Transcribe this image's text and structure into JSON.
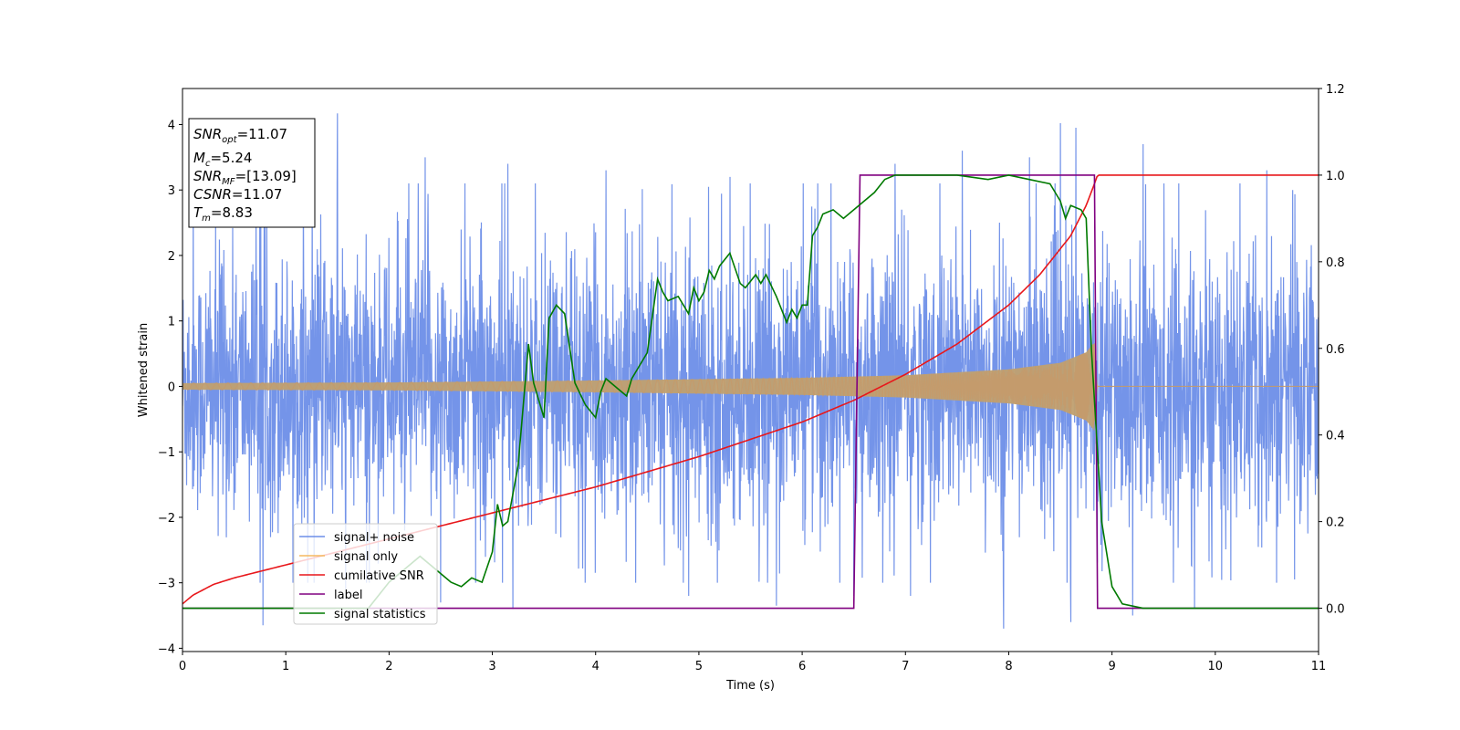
{
  "chart_data": {
    "type": "line",
    "title": "",
    "xlabel": "Time (s)",
    "ylabel": "Whitened strain",
    "xlim": [
      0,
      11
    ],
    "ylim_left": [
      -4.05,
      4.55
    ],
    "ylim_right": [
      -0.1,
      1.2
    ],
    "xticks": [
      "0",
      "1",
      "2",
      "3",
      "4",
      "5",
      "6",
      "7",
      "8",
      "9",
      "10",
      "11"
    ],
    "yticks_left": [
      "−4",
      "−3",
      "−2",
      "−1",
      "0",
      "1",
      "2",
      "3",
      "4"
    ],
    "yticks_right": [
      "0.0",
      "0.2",
      "0.4",
      "0.6",
      "0.8",
      "1.0",
      "1.2"
    ],
    "grid": false,
    "legend_position": "lower-left",
    "annotation": [
      {
        "sym": "SNR",
        "sub": "opt",
        "val": "=11.07"
      },
      {
        "sym": "M",
        "sub": "c",
        "val": "=5.24"
      },
      {
        "sym": "SNR",
        "sub": "MF",
        "val": "=[13.09]"
      },
      {
        "sym": "CSNR",
        "sub": "",
        "val": "=11.07"
      },
      {
        "sym": "T",
        "sub": "m",
        "val": "=8.83"
      }
    ],
    "series": [
      {
        "name": "signal+ noise",
        "axis": "left",
        "color": "#6d8ee8",
        "description_values": {
          "typical_amplitude": 1.3,
          "min": -3.7,
          "max": 4.17
        },
        "spikes": [
          [
            0.75,
            2.9
          ],
          [
            0.78,
            -3.65
          ],
          [
            1.5,
            4.17
          ],
          [
            1.58,
            -3.1
          ],
          [
            2.35,
            3.5
          ],
          [
            2.5,
            -3.3
          ],
          [
            3.15,
            3.4
          ],
          [
            3.2,
            -3.4
          ],
          [
            4.1,
            3.3
          ],
          [
            4.9,
            -3.2
          ],
          [
            5.3,
            3.2
          ],
          [
            5.75,
            -3.35
          ],
          [
            6.15,
            3.1
          ],
          [
            6.5,
            -3.2
          ],
          [
            6.9,
            3.4
          ],
          [
            7.05,
            -3.2
          ],
          [
            7.55,
            3.6
          ],
          [
            7.95,
            -3.7
          ],
          [
            8.2,
            3.5
          ],
          [
            8.5,
            4.02
          ],
          [
            8.6,
            -3.6
          ],
          [
            8.65,
            3.95
          ],
          [
            9.2,
            -3.5
          ],
          [
            9.3,
            3.7
          ],
          [
            9.8,
            -3.4
          ],
          [
            10.5,
            3.3
          ],
          [
            10.75,
            3.0
          ]
        ]
      },
      {
        "name": "signal only",
        "axis": "left",
        "color": "#f5b861",
        "envelope": {
          "x": [
            0,
            2,
            4,
            6,
            7,
            8,
            8.5,
            8.75,
            8.83,
            8.86,
            11
          ],
          "amp": [
            0.05,
            0.06,
            0.09,
            0.13,
            0.17,
            0.26,
            0.36,
            0.52,
            0.68,
            0,
            0
          ]
        }
      },
      {
        "name": "cumilative SNR",
        "axis": "right",
        "color": "#e8171b",
        "x": [
          0,
          0.1,
          0.3,
          0.5,
          1,
          2,
          3,
          4,
          5,
          6,
          6.5,
          7,
          7.5,
          8,
          8.3,
          8.6,
          8.75,
          8.83,
          8.86,
          11
        ],
        "values": [
          0.01,
          0.03,
          0.055,
          0.07,
          0.1,
          0.16,
          0.22,
          0.28,
          0.35,
          0.43,
          0.48,
          0.54,
          0.61,
          0.7,
          0.77,
          0.86,
          0.93,
          0.98,
          1.0,
          1.0
        ]
      },
      {
        "name": "label",
        "axis": "right",
        "color": "#800080",
        "x": [
          0,
          6.5,
          6.56,
          8.83,
          8.86,
          11
        ],
        "values": [
          0,
          0,
          1,
          1,
          0,
          0
        ]
      },
      {
        "name": "signal statistics",
        "axis": "right",
        "color": "#007a00",
        "x": [
          0,
          1,
          1.8,
          2,
          2.3,
          2.6,
          2.7,
          2.8,
          2.9,
          3.0,
          3.05,
          3.1,
          3.15,
          3.25,
          3.35,
          3.4,
          3.5,
          3.55,
          3.62,
          3.7,
          3.8,
          3.9,
          4.0,
          4.05,
          4.1,
          4.2,
          4.3,
          4.35,
          4.4,
          4.5,
          4.6,
          4.65,
          4.7,
          4.8,
          4.9,
          4.95,
          5.0,
          5.05,
          5.1,
          5.15,
          5.2,
          5.3,
          5.4,
          5.45,
          5.55,
          5.6,
          5.65,
          5.75,
          5.85,
          5.9,
          5.95,
          6.0,
          6.05,
          6.1,
          6.15,
          6.2,
          6.3,
          6.4,
          6.5,
          6.6,
          6.7,
          6.8,
          6.9,
          7.0,
          7.2,
          7.5,
          7.8,
          8.0,
          8.2,
          8.4,
          8.5,
          8.55,
          8.6,
          8.7,
          8.75,
          8.8,
          8.9,
          9.0,
          9.1,
          9.3,
          11
        ],
        "values": [
          0.0,
          0.0,
          0.0,
          0.06,
          0.12,
          0.06,
          0.05,
          0.07,
          0.06,
          0.13,
          0.24,
          0.19,
          0.2,
          0.33,
          0.61,
          0.52,
          0.44,
          0.67,
          0.7,
          0.68,
          0.52,
          0.47,
          0.44,
          0.5,
          0.53,
          0.51,
          0.49,
          0.53,
          0.55,
          0.59,
          0.76,
          0.73,
          0.71,
          0.72,
          0.68,
          0.74,
          0.71,
          0.73,
          0.78,
          0.76,
          0.79,
          0.82,
          0.75,
          0.74,
          0.77,
          0.75,
          0.77,
          0.72,
          0.66,
          0.69,
          0.67,
          0.7,
          0.7,
          0.86,
          0.88,
          0.91,
          0.92,
          0.9,
          0.92,
          0.94,
          0.96,
          0.99,
          1.0,
          1.0,
          1.0,
          1.0,
          0.99,
          1.0,
          0.99,
          0.98,
          0.94,
          0.9,
          0.93,
          0.92,
          0.9,
          0.6,
          0.2,
          0.05,
          0.01,
          0.0,
          0.0
        ]
      }
    ]
  }
}
